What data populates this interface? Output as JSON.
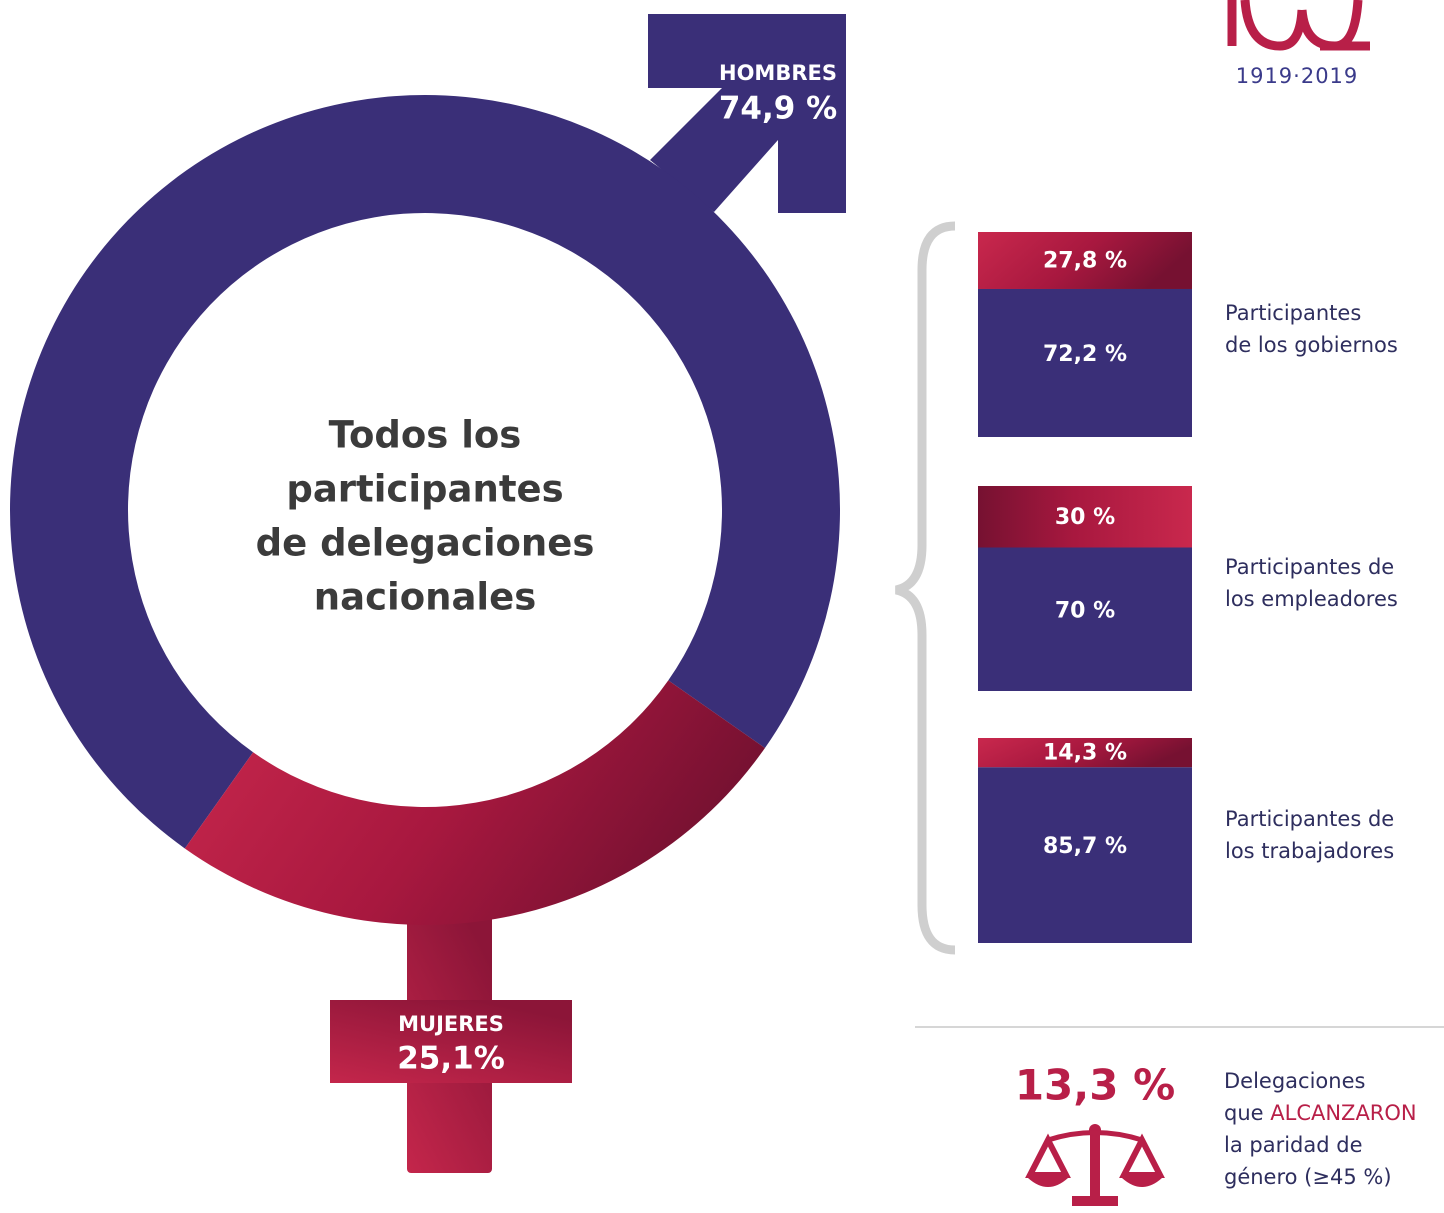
{
  "chart_data": [
    {
      "type": "donut",
      "categories": [
        "HOMBRES",
        "MUJERES"
      ],
      "values": [
        74.9,
        25.1
      ],
      "value_labels": [
        "74,9 %",
        "25,1%"
      ],
      "colors": [
        "#3a2f78",
        "#b81f48"
      ],
      "center_text": [
        "Todos los",
        "participantes",
        "de delegaciones",
        "nacionales"
      ]
    },
    {
      "type": "stacked_bar",
      "categories": [
        [
          "Participantes",
          "de los gobiernos"
        ],
        [
          "Participantes de",
          "los empleadores"
        ],
        [
          "Participantes de",
          "los trabajadores"
        ]
      ],
      "series": [
        {
          "color": "#b81f48",
          "values": [
            27.8,
            30,
            14.3
          ],
          "value_labels": [
            "27,8 %",
            "30 %",
            "14,3 %"
          ]
        },
        {
          "color": "#3a2f78",
          "values": [
            72.2,
            70,
            85.7
          ],
          "value_labels": [
            "72,2 %",
            "70 %",
            "85,7 %"
          ]
        }
      ],
      "ylim": [
        0,
        100
      ]
    }
  ],
  "logo": {
    "years": "1919·2019"
  },
  "highlight": {
    "figure": "13,3 %",
    "description": [
      "Delegaciones",
      "que",
      "ALCANZARON",
      "la paridad de",
      "género (≥45 %)"
    ]
  }
}
